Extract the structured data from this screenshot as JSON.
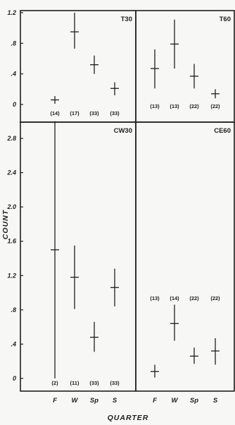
{
  "figure": {
    "ylabel": "COUNT",
    "xlabel": "QUARTER"
  },
  "chart_data": [
    {
      "type": "scatter",
      "title": "T30",
      "position": "top-left",
      "categories": [
        "F",
        "W",
        "Sp",
        "S"
      ],
      "ylim": [
        -0.15,
        1.23
      ],
      "yticks": [
        "0",
        ".4",
        ".8",
        "1.2"
      ],
      "values": [
        0.06,
        0.95,
        0.52,
        0.21
      ],
      "error_low": [
        0.01,
        0.73,
        0.4,
        0.12
      ],
      "error_high": [
        0.11,
        1.2,
        0.64,
        0.29
      ],
      "n_labels": [
        "(14)",
        "(17)",
        "(33)",
        "(33)"
      ]
    },
    {
      "type": "scatter",
      "title": "T60",
      "position": "top-right",
      "categories": [
        "F",
        "W",
        "Sp",
        "S"
      ],
      "ylim": [
        -0.15,
        1.23
      ],
      "yticks": [
        "0",
        ".4",
        ".8",
        "1.2"
      ],
      "values": [
        0.47,
        0.79,
        0.37,
        0.14
      ],
      "error_low": [
        0.21,
        0.47,
        0.21,
        0.08
      ],
      "error_high": [
        0.72,
        1.11,
        0.53,
        0.2
      ],
      "n_labels": [
        "(13)",
        "(13)",
        "(22)",
        "(22)"
      ]
    },
    {
      "type": "scatter",
      "title": "CW30",
      "position": "bottom-left",
      "categories": [
        "F",
        "W",
        "Sp",
        "S"
      ],
      "ylim": [
        -0.12,
        3.0
      ],
      "yticks": [
        "0",
        ".4",
        ".8",
        "1.2",
        "1.6",
        "2.0",
        "2.4",
        "2.8"
      ],
      "values": [
        1.5,
        1.18,
        0.48,
        1.06
      ],
      "error_low": [
        0.0,
        0.81,
        0.31,
        0.84
      ],
      "error_high": [
        3.0,
        1.55,
        0.66,
        1.28
      ],
      "n_labels": [
        "(2)",
        "(11)",
        "(33)",
        "(33)"
      ]
    },
    {
      "type": "scatter",
      "title": "CE60",
      "position": "bottom-right",
      "categories": [
        "F",
        "W",
        "Sp",
        "S"
      ],
      "ylim": [
        -0.12,
        3.0
      ],
      "yticks": [
        "0",
        ".4",
        ".8",
        "1.2",
        "1.6",
        "2.0",
        "2.4",
        "2.8"
      ],
      "values": [
        0.08,
        0.64,
        0.26,
        0.32
      ],
      "error_low": [
        0.01,
        0.44,
        0.17,
        0.16
      ],
      "error_high": [
        0.16,
        0.86,
        0.36,
        0.47
      ],
      "n_labels": [
        "(13)",
        "(14)",
        "(22)",
        "(22)"
      ]
    }
  ]
}
